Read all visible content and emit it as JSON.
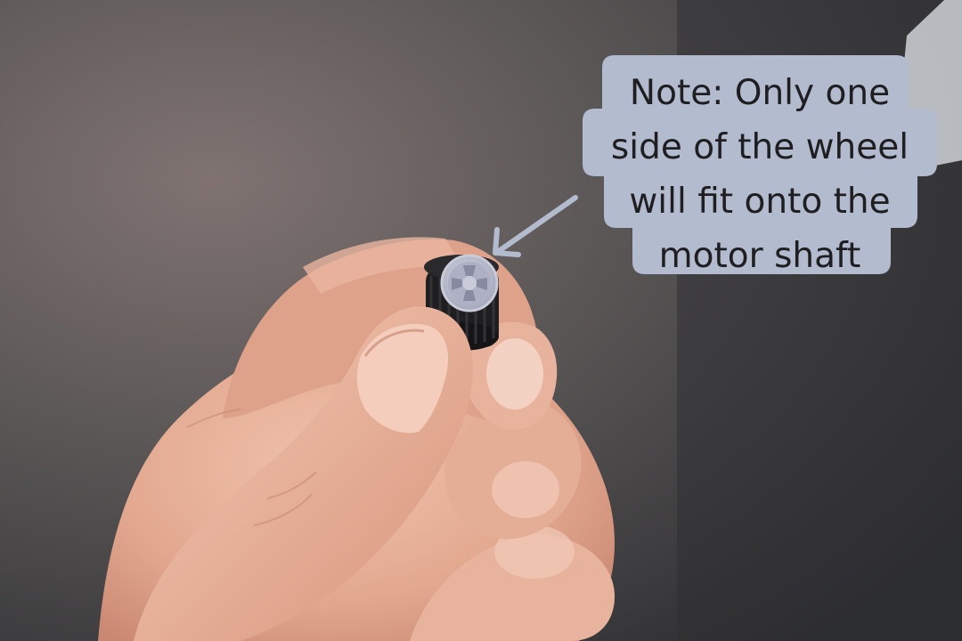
{
  "annotation": {
    "text": "Note: Only one\nside of the wheel\nwill fit onto the\nmotor shaft",
    "box_color": "#b3bbcf",
    "text_color": "#1f1f22",
    "arrow_color": "#b3bbcf",
    "arrow_icon": "arrow-pointing-to-wheel-icon"
  },
  "photo": {
    "subject_icon": "hand-holding-wheel-photo",
    "background_color": "#3a3b3d",
    "wheel_hub_color": "#b9bccb",
    "tire_color": "#1c1c1e",
    "skin_color": "#e2ab93"
  }
}
